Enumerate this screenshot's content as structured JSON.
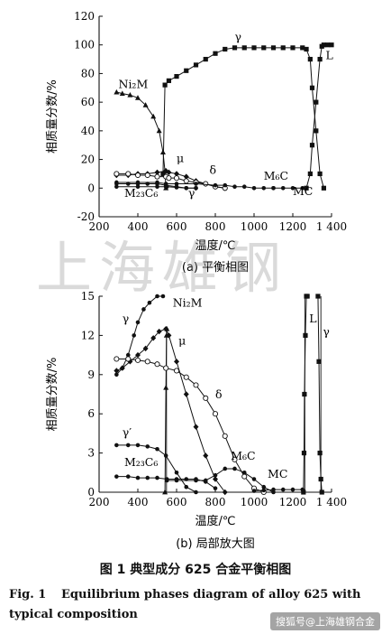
{
  "watermark": "上海雄钢",
  "caption": {
    "cn": "图 1   典型成分 625 合金平衡相图",
    "en_label": "Fig. 1",
    "en_text": "Equilibrium phases diagram of alloy 625 with typical composition"
  },
  "source_badge": "搜狐号@上海雄钢合金",
  "chart_data": [
    {
      "type": "line",
      "title": "(a)  平衡相图",
      "xlabel": "温度/℃",
      "ylabel": "相质量分数/%",
      "xlim": [
        200,
        1400
      ],
      "ylim": [
        -20,
        120
      ],
      "xticks": [
        200,
        400,
        600,
        800,
        1000,
        1200,
        1400
      ],
      "xtick_labels": [
        "200",
        "400",
        "600",
        "800",
        "1000",
        "1200",
        "1 400"
      ],
      "yticks": [
        -20,
        0,
        20,
        40,
        60,
        80,
        100,
        120
      ],
      "grid": false,
      "series": [
        {
          "name": "γ",
          "marker": "square",
          "x": [
            530,
            540,
            560,
            600,
            650,
            700,
            750,
            800,
            850,
            900,
            950,
            1000,
            1050,
            1100,
            1150,
            1200,
            1250,
            1270,
            1290,
            1300,
            1320,
            1340,
            1360
          ],
          "y": [
            10,
            72,
            75,
            78,
            82,
            86,
            90,
            94,
            97,
            98,
            98,
            98,
            98,
            98,
            98,
            98,
            98,
            97,
            90,
            70,
            40,
            10,
            0
          ]
        },
        {
          "name": "L",
          "marker": "square",
          "x": [
            1270,
            1290,
            1300,
            1320,
            1340,
            1350,
            1360,
            1380,
            1400
          ],
          "y": [
            0,
            10,
            30,
            60,
            90,
            99,
            100,
            100,
            100
          ]
        },
        {
          "name": "Ni2M",
          "marker": "triangle",
          "x": [
            290,
            320,
            360,
            400,
            440,
            480,
            510,
            530,
            540,
            545
          ],
          "y": [
            67,
            66,
            65,
            63,
            58,
            50,
            40,
            25,
            12,
            0
          ]
        },
        {
          "name": "μ",
          "marker": "diamond",
          "x": [
            290,
            350,
            400,
            450,
            500,
            545,
            560,
            600,
            650,
            700,
            750,
            800,
            850
          ],
          "y": [
            9,
            9,
            10,
            10,
            11,
            12,
            11,
            10,
            8,
            5,
            3,
            1,
            0
          ]
        },
        {
          "name": "δ",
          "marker": "circle-open",
          "x": [
            290,
            350,
            400,
            450,
            500,
            545,
            560,
            600,
            650,
            700,
            750,
            800,
            850
          ],
          "y": [
            10,
            10,
            9,
            9,
            8,
            8,
            7,
            7,
            5,
            4,
            3,
            1,
            0
          ]
        },
        {
          "name": "M6C",
          "marker": "circle",
          "x": [
            290,
            400,
            500,
            545,
            600,
            700,
            800,
            850,
            900,
            950,
            1000,
            1050,
            1100
          ],
          "y": [
            4,
            4,
            4,
            3,
            3,
            3,
            2,
            2,
            1,
            1,
            0,
            0,
            0
          ]
        },
        {
          "name": "M23C6",
          "marker": "circle",
          "x": [
            290,
            400,
            500,
            545,
            550,
            600,
            650,
            700
          ],
          "y": [
            1,
            1,
            1,
            1,
            1,
            0.5,
            0,
            0
          ]
        },
        {
          "name": "γ′",
          "marker": "circle",
          "x": [
            290,
            350,
            400,
            450,
            500,
            545,
            600,
            650,
            700
          ],
          "y": [
            3,
            3,
            3,
            3,
            3,
            2,
            1,
            0,
            0
          ]
        },
        {
          "name": "MC",
          "marker": "circle",
          "x": [
            1100,
            1150,
            1200,
            1250,
            1270
          ],
          "y": [
            0,
            0,
            0,
            0,
            0
          ]
        }
      ],
      "annotations": [
        {
          "text": "Ni₂M",
          "x": 300,
          "y": 70
        },
        {
          "text": "γ",
          "x": 900,
          "y": 103
        },
        {
          "text": "L",
          "x": 1370,
          "y": 90
        },
        {
          "text": "μ",
          "x": 600,
          "y": 18
        },
        {
          "text": "δ",
          "x": 770,
          "y": 10
        },
        {
          "text": "M₆C",
          "x": 1050,
          "y": 6
        },
        {
          "text": "MC",
          "x": 1200,
          "y": -5
        },
        {
          "text": "M₂₃C₆",
          "x": 330,
          "y": -6
        },
        {
          "text": "γ′",
          "x": 660,
          "y": -6
        }
      ]
    },
    {
      "type": "line",
      "title": "(b)  局部放大图",
      "xlabel": "温度/℃",
      "ylabel": "相质量分数/%",
      "xlim": [
        200,
        1400
      ],
      "ylim": [
        0,
        15
      ],
      "xticks": [
        200,
        400,
        600,
        800,
        1000,
        1200,
        1400
      ],
      "xtick_labels": [
        "200",
        "400",
        "600",
        "800",
        "1000",
        "1200",
        "1 400"
      ],
      "yticks": [
        0,
        3,
        6,
        9,
        12,
        15
      ],
      "grid": false,
      "series": [
        {
          "name": "γ",
          "marker": "circle",
          "x": [
            290,
            320,
            350,
            380,
            400,
            430,
            460,
            500,
            530
          ],
          "y": [
            9,
            9.5,
            10.5,
            12,
            13,
            14,
            14.5,
            15,
            15
          ]
        },
        {
          "name": "Ni2M",
          "marker": "triangle",
          "x": [
            540,
            545,
            548,
            550
          ],
          "y": [
            0,
            8,
            12,
            12.5
          ]
        },
        {
          "name": "μ",
          "marker": "diamond",
          "x": [
            290,
            320,
            360,
            400,
            440,
            480,
            510,
            545,
            560,
            600,
            650,
            700,
            750,
            800,
            850
          ],
          "y": [
            9.3,
            9.5,
            10,
            10.5,
            11,
            11.8,
            12.3,
            12.5,
            12,
            10,
            7.5,
            5,
            2.8,
            1,
            0
          ]
        },
        {
          "name": "δ",
          "marker": "circle-open",
          "x": [
            290,
            350,
            400,
            450,
            500,
            545,
            600,
            650,
            700,
            750,
            800,
            850,
            900,
            950,
            1000,
            1050
          ],
          "y": [
            10.2,
            10.2,
            10.1,
            10,
            9.8,
            9.5,
            9.3,
            8.8,
            8.2,
            7.2,
            6,
            4.3,
            2.5,
            1.2,
            0.3,
            0
          ]
        },
        {
          "name": "γ′",
          "marker": "circle",
          "x": [
            290,
            350,
            400,
            450,
            500,
            545,
            600,
            650,
            700
          ],
          "y": [
            3.6,
            3.6,
            3.6,
            3.5,
            3.3,
            2.8,
            1.5,
            0.4,
            0
          ]
        },
        {
          "name": "M23C6",
          "marker": "circle",
          "x": [
            290,
            350,
            400,
            450,
            500,
            550,
            600,
            650,
            700,
            750,
            800
          ],
          "y": [
            1.2,
            1.2,
            1.1,
            1.1,
            1.1,
            1,
            1,
            1,
            1,
            0.8,
            0.3
          ]
        },
        {
          "name": "M6C",
          "marker": "circle",
          "x": [
            550,
            600,
            700,
            750,
            800,
            850,
            900,
            950,
            1000,
            1050,
            1100
          ],
          "y": [
            0.9,
            0.9,
            0.9,
            0.9,
            1.3,
            1.8,
            1.8,
            1.5,
            1,
            0.4,
            0
          ]
        },
        {
          "name": "MC",
          "marker": "circle",
          "x": [
            1000,
            1050,
            1100,
            1150,
            1200,
            1250
          ],
          "y": [
            0.1,
            0.15,
            0.2,
            0.2,
            0.2,
            0.2
          ]
        },
        {
          "name": "L",
          "marker": "square",
          "x": [
            1255,
            1258,
            1260,
            1265,
            1270,
            1275
          ],
          "y": [
            0,
            3,
            7.5,
            12,
            15,
            15
          ]
        },
        {
          "name": "γ (high)",
          "marker": "square",
          "x": [
            1330,
            1335,
            1340,
            1345,
            1350
          ],
          "y": [
            15,
            10,
            3,
            1,
            0
          ]
        }
      ],
      "annotations": [
        {
          "text": "γ",
          "x": 320,
          "y": 13
        },
        {
          "text": "Ni₂M",
          "x": 580,
          "y": 14.2
        },
        {
          "text": "μ",
          "x": 610,
          "y": 11.3
        },
        {
          "text": "δ",
          "x": 800,
          "y": 7.2
        },
        {
          "text": "γ′",
          "x": 320,
          "y": 4.3
        },
        {
          "text": "M₂₃C₆",
          "x": 330,
          "y": 2
        },
        {
          "text": "M₆C",
          "x": 880,
          "y": 2.5
        },
        {
          "text": "MC",
          "x": 1070,
          "y": 1.1
        },
        {
          "text": "L",
          "x": 1285,
          "y": 13
        },
        {
          "text": "γ",
          "x": 1355,
          "y": 12
        }
      ]
    }
  ]
}
